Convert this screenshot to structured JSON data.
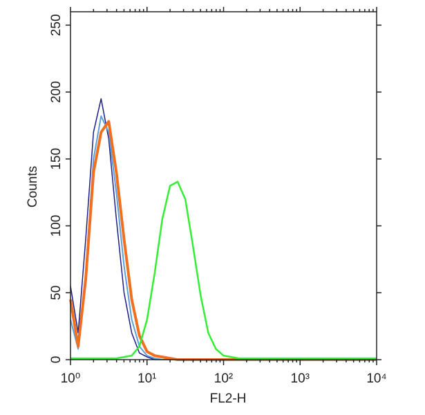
{
  "chart_data": {
    "type": "line",
    "x_label": "FL2-H",
    "y_label": "Counts",
    "log_x": true,
    "xlim": [
      1,
      10000
    ],
    "xticks": [
      {
        "value": 1,
        "label": "10⁰"
      },
      {
        "value": 10,
        "label": "10¹"
      },
      {
        "value": 100,
        "label": "10²"
      },
      {
        "value": 1000,
        "label": "10³"
      },
      {
        "value": 10000,
        "label": "10⁴"
      }
    ],
    "ylim": [
      0,
      260
    ],
    "yticks": [
      0,
      50,
      100,
      150,
      200,
      250
    ],
    "x": [
      1,
      1.26,
      1.58,
      2,
      2.51,
      3.16,
      3.98,
      5.01,
      6.31,
      7.94,
      10,
      12.6,
      15.8,
      20,
      25.1,
      31.6,
      39.8,
      50.1,
      63.1,
      79.4,
      100,
      126,
      158,
      200,
      251,
      316,
      398,
      501,
      631,
      794,
      1000,
      1260,
      1580,
      2000,
      2510,
      3160,
      3980,
      5010,
      6310,
      7940,
      10000
    ],
    "series": [
      {
        "color": "#1c1c8a",
        "width": 1.5,
        "values": [
          55,
          20,
          90,
          170,
          195,
          165,
          105,
          50,
          20,
          5,
          2,
          0,
          0,
          0,
          0,
          0,
          0,
          0,
          0,
          0,
          0,
          0,
          0,
          0,
          0,
          0,
          0,
          0,
          0,
          0,
          0,
          0,
          0,
          0,
          0,
          0,
          0,
          0,
          0,
          0,
          0
        ]
      },
      {
        "color": "#5aa0d8",
        "width": 2,
        "values": [
          30,
          8,
          65,
          150,
          182,
          170,
          125,
          70,
          30,
          10,
          3,
          1,
          0,
          0,
          0,
          0,
          0,
          0,
          0,
          0,
          0,
          0,
          0,
          0,
          0,
          0,
          0,
          0,
          0,
          0,
          0,
          0,
          0,
          0,
          0,
          0,
          0,
          0,
          0,
          0,
          0
        ]
      },
      {
        "color": "#f07020",
        "width": 4,
        "values": [
          45,
          10,
          60,
          140,
          170,
          178,
          140,
          90,
          45,
          18,
          6,
          3,
          2,
          1,
          0,
          0,
          0,
          0,
          0,
          0,
          0,
          0,
          0,
          0,
          0,
          0,
          0,
          0,
          0,
          0,
          0,
          0,
          0,
          0,
          0,
          0,
          0,
          0,
          0,
          0,
          0
        ]
      },
      {
        "color": "#33ee33",
        "width": 2.5,
        "values": [
          1,
          1,
          1,
          1,
          1,
          1,
          1,
          2,
          3,
          10,
          30,
          65,
          105,
          130,
          133,
          120,
          85,
          48,
          20,
          8,
          3,
          2,
          1,
          1,
          1,
          1,
          1,
          1,
          1,
          1,
          1,
          1,
          1,
          1,
          1,
          1,
          1,
          1,
          1,
          1,
          1
        ]
      }
    ]
  }
}
